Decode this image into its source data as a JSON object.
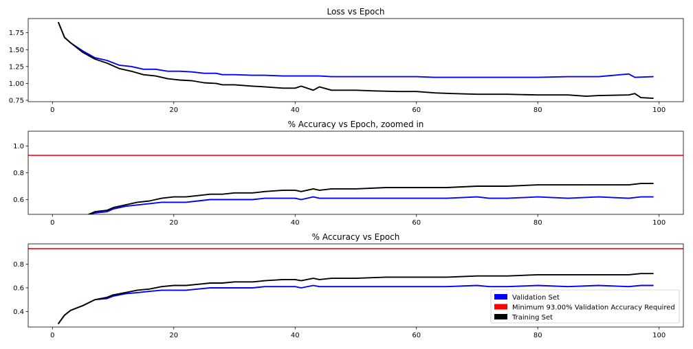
{
  "colors": {
    "validation": "#0000ff",
    "training": "#000000",
    "threshold": "#ff0000",
    "axes": "#000000",
    "background": "#ffffff"
  },
  "legend": {
    "placement": "lower-right",
    "entries": [
      {
        "label": "Validation Set",
        "color": "#0000ff"
      },
      {
        "label": "Minimum 93.00% Validation Accuracy Required",
        "color": "#ff0000"
      },
      {
        "label": "Training Set",
        "color": "#000000"
      }
    ]
  },
  "chart_data": [
    {
      "type": "line",
      "title": "Loss vs Epoch",
      "xlabel": "",
      "ylabel": "",
      "xlim": [
        -4,
        104
      ],
      "ylim": [
        0.73,
        1.96
      ],
      "xticks": [
        0,
        20,
        40,
        60,
        80,
        100
      ],
      "yticks": [
        0.75,
        1.0,
        1.25,
        1.5,
        1.75
      ],
      "ytick_labels": [
        "0.75",
        "1.00",
        "1.25",
        "1.50",
        "1.75"
      ],
      "grid": false,
      "series": [
        {
          "name": "Validation Set",
          "color": "#0000ff",
          "x": [
            1,
            2,
            3,
            5,
            7,
            9,
            11,
            13,
            15,
            17,
            19,
            21,
            23,
            25,
            27,
            28,
            30,
            33,
            35,
            38,
            40,
            42,
            44,
            46,
            50,
            53,
            57,
            60,
            63,
            66,
            70,
            75,
            80,
            85,
            90,
            95,
            96,
            99
          ],
          "y": [
            1.9,
            1.68,
            1.6,
            1.48,
            1.38,
            1.34,
            1.27,
            1.25,
            1.21,
            1.21,
            1.18,
            1.18,
            1.17,
            1.15,
            1.15,
            1.13,
            1.13,
            1.12,
            1.12,
            1.11,
            1.11,
            1.11,
            1.11,
            1.1,
            1.1,
            1.1,
            1.1,
            1.1,
            1.09,
            1.09,
            1.09,
            1.09,
            1.09,
            1.1,
            1.1,
            1.14,
            1.09,
            1.1
          ]
        },
        {
          "name": "Training Set",
          "color": "#000000",
          "x": [
            1,
            2,
            3,
            5,
            7,
            9,
            11,
            13,
            15,
            17,
            19,
            21,
            23,
            25,
            27,
            28,
            30,
            33,
            35,
            38,
            40,
            41,
            43,
            44,
            46,
            50,
            53,
            57,
            60,
            63,
            66,
            70,
            75,
            80,
            85,
            88,
            90,
            95,
            96,
            97,
            99
          ],
          "y": [
            1.9,
            1.68,
            1.6,
            1.46,
            1.36,
            1.3,
            1.22,
            1.18,
            1.13,
            1.11,
            1.07,
            1.05,
            1.04,
            1.01,
            1.0,
            0.98,
            0.98,
            0.96,
            0.95,
            0.93,
            0.93,
            0.96,
            0.9,
            0.95,
            0.9,
            0.9,
            0.89,
            0.88,
            0.88,
            0.86,
            0.85,
            0.84,
            0.84,
            0.83,
            0.83,
            0.81,
            0.82,
            0.83,
            0.85,
            0.79,
            0.78
          ]
        }
      ]
    },
    {
      "type": "line",
      "title": "% Accuracy vs Epoch, zoomed in",
      "xlabel": "",
      "ylabel": "",
      "xlim": [
        -4,
        104
      ],
      "ylim": [
        0.49,
        1.11
      ],
      "xticks": [
        0,
        20,
        40,
        60,
        80,
        100
      ],
      "yticks": [
        0.6,
        0.8,
        1.0
      ],
      "ytick_labels": [
        "0.6",
        "0.8",
        "1.0"
      ],
      "grid": false,
      "hlines": [
        {
          "name": "Minimum 93.00% Validation Accuracy Required",
          "y": 0.93,
          "color": "#ff0000"
        }
      ],
      "series": [
        {
          "name": "Validation Set",
          "color": "#0000ff",
          "x": [
            6,
            7,
            9,
            10,
            12,
            14,
            16,
            18,
            20,
            22,
            24,
            26,
            28,
            30,
            33,
            35,
            38,
            40,
            41,
            43,
            44,
            46,
            50,
            55,
            60,
            65,
            70,
            72,
            75,
            80,
            85,
            90,
            95,
            97,
            99
          ],
          "y": [
            0.49,
            0.5,
            0.51,
            0.53,
            0.55,
            0.56,
            0.57,
            0.58,
            0.58,
            0.58,
            0.59,
            0.6,
            0.6,
            0.6,
            0.6,
            0.61,
            0.61,
            0.61,
            0.6,
            0.62,
            0.61,
            0.61,
            0.61,
            0.61,
            0.61,
            0.61,
            0.62,
            0.61,
            0.61,
            0.62,
            0.61,
            0.62,
            0.61,
            0.62,
            0.62
          ]
        },
        {
          "name": "Training Set",
          "color": "#000000",
          "x": [
            6,
            7,
            9,
            10,
            12,
            14,
            16,
            18,
            20,
            22,
            24,
            26,
            28,
            30,
            33,
            35,
            38,
            40,
            41,
            43,
            44,
            46,
            50,
            55,
            60,
            65,
            70,
            75,
            80,
            85,
            90,
            95,
            97,
            99
          ],
          "y": [
            0.49,
            0.51,
            0.52,
            0.54,
            0.56,
            0.58,
            0.59,
            0.61,
            0.62,
            0.62,
            0.63,
            0.64,
            0.64,
            0.65,
            0.65,
            0.66,
            0.67,
            0.67,
            0.66,
            0.68,
            0.67,
            0.68,
            0.68,
            0.69,
            0.69,
            0.69,
            0.7,
            0.7,
            0.71,
            0.71,
            0.71,
            0.71,
            0.72,
            0.72
          ]
        }
      ]
    },
    {
      "type": "line",
      "title": "% Accuracy vs Epoch",
      "xlabel": "",
      "ylabel": "",
      "xlim": [
        -4,
        104
      ],
      "ylim": [
        0.27,
        0.97
      ],
      "xticks": [
        0,
        20,
        40,
        60,
        80,
        100
      ],
      "yticks": [
        0.4,
        0.6,
        0.8
      ],
      "ytick_labels": [
        "0.4",
        "0.6",
        "0.8"
      ],
      "grid": false,
      "legend": "lower-right",
      "hlines": [
        {
          "name": "Minimum 93.00% Validation Accuracy Required",
          "y": 0.93,
          "color": "#ff0000"
        }
      ],
      "series": [
        {
          "name": "Validation Set",
          "color": "#0000ff",
          "x": [
            1,
            2,
            3,
            5,
            7,
            9,
            10,
            12,
            14,
            16,
            18,
            20,
            22,
            24,
            26,
            28,
            30,
            33,
            35,
            38,
            40,
            41,
            43,
            44,
            46,
            50,
            55,
            60,
            65,
            70,
            72,
            75,
            80,
            85,
            90,
            95,
            97,
            99
          ],
          "y": [
            0.3,
            0.37,
            0.41,
            0.45,
            0.5,
            0.51,
            0.53,
            0.55,
            0.56,
            0.57,
            0.58,
            0.58,
            0.58,
            0.59,
            0.6,
            0.6,
            0.6,
            0.6,
            0.61,
            0.61,
            0.61,
            0.6,
            0.62,
            0.61,
            0.61,
            0.61,
            0.61,
            0.61,
            0.61,
            0.62,
            0.61,
            0.61,
            0.62,
            0.61,
            0.62,
            0.61,
            0.62,
            0.62
          ]
        },
        {
          "name": "Training Set",
          "color": "#000000",
          "x": [
            1,
            2,
            3,
            5,
            7,
            9,
            10,
            12,
            14,
            16,
            18,
            20,
            22,
            24,
            26,
            28,
            30,
            33,
            35,
            38,
            40,
            41,
            43,
            44,
            46,
            50,
            55,
            60,
            65,
            70,
            75,
            80,
            85,
            90,
            95,
            97,
            99
          ],
          "y": [
            0.3,
            0.37,
            0.41,
            0.45,
            0.5,
            0.52,
            0.54,
            0.56,
            0.58,
            0.59,
            0.61,
            0.62,
            0.62,
            0.63,
            0.64,
            0.64,
            0.65,
            0.65,
            0.66,
            0.67,
            0.67,
            0.66,
            0.68,
            0.67,
            0.68,
            0.68,
            0.69,
            0.69,
            0.69,
            0.7,
            0.7,
            0.71,
            0.71,
            0.71,
            0.71,
            0.72,
            0.72
          ]
        }
      ]
    }
  ]
}
